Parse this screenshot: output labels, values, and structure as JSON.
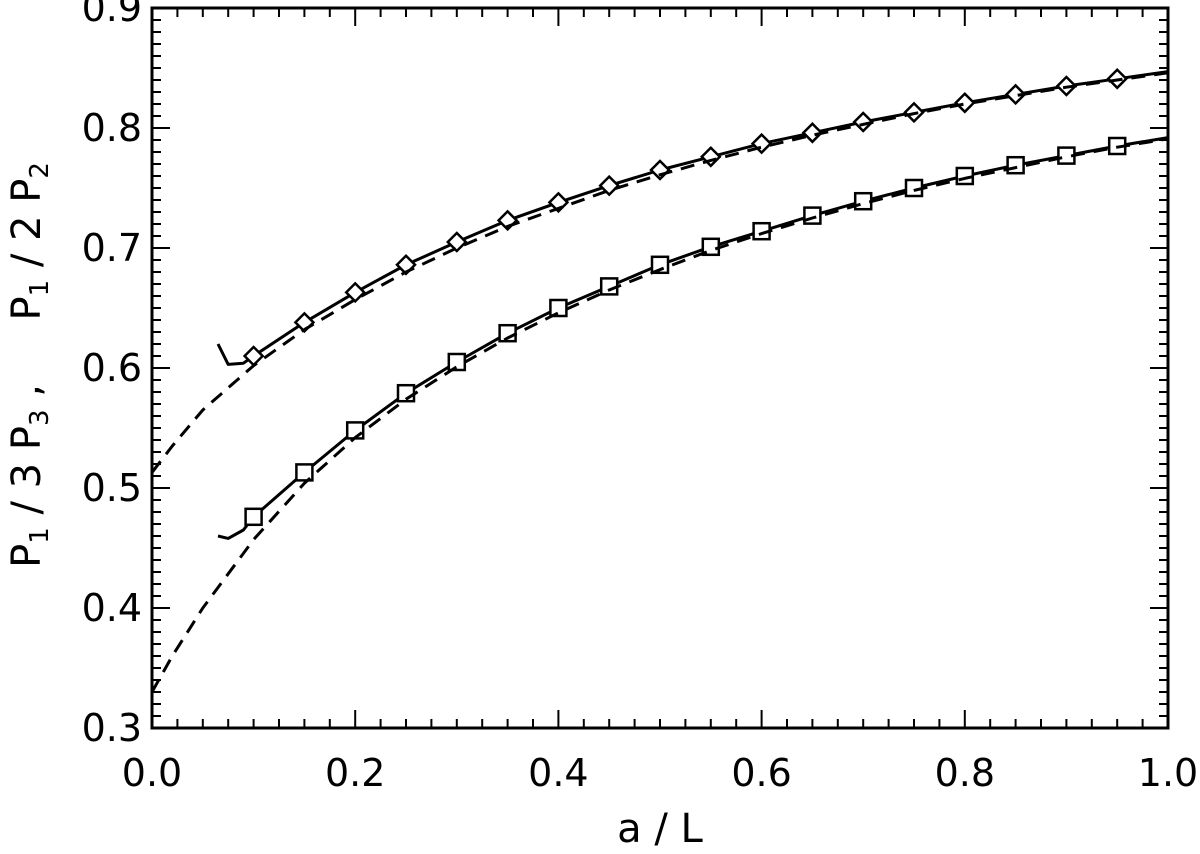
{
  "chart_data": {
    "type": "line",
    "title": "",
    "xlabel": "a / L",
    "ylabel": {
      "p1": "P",
      "sub1": "1",
      "mid1": " / 3 P",
      "sub3": "3",
      "mid2": " ,     P",
      "sub1b": "1",
      "mid3": " / 2 P",
      "sub2": "2"
    },
    "xlim": [
      0.0,
      1.0
    ],
    "ylim": [
      0.3,
      0.9
    ],
    "xticks": [
      "0.0",
      "0.2",
      "0.4",
      "0.6",
      "0.8",
      "1.0"
    ],
    "yticks": [
      "0.3",
      "0.4",
      "0.5",
      "0.6",
      "0.7",
      "0.8",
      "0.9"
    ],
    "grid": false,
    "series": [
      {
        "marker": "diamond",
        "style": "solid",
        "x": [
          0.065,
          0.075,
          0.09,
          0.1,
          0.15,
          0.2,
          0.25,
          0.3,
          0.35,
          0.4,
          0.45,
          0.5,
          0.55,
          0.6,
          0.65,
          0.7,
          0.75,
          0.8,
          0.85,
          0.9,
          0.95,
          1.0
        ],
        "y": [
          0.62,
          0.603,
          0.604,
          0.61,
          0.638,
          0.663,
          0.686,
          0.705,
          0.723,
          0.738,
          0.752,
          0.765,
          0.776,
          0.787,
          0.796,
          0.805,
          0.813,
          0.821,
          0.828,
          0.835,
          0.841,
          0.847
        ],
        "marker_x": [
          0.1,
          0.15,
          0.2,
          0.25,
          0.3,
          0.35,
          0.4,
          0.45,
          0.5,
          0.55,
          0.6,
          0.65,
          0.7,
          0.75,
          0.8,
          0.85,
          0.9,
          0.95
        ]
      },
      {
        "marker": "none",
        "style": "dashed",
        "x": [
          0.0,
          0.02,
          0.05,
          0.1,
          0.15,
          0.2,
          0.25,
          0.3,
          0.35,
          0.4,
          0.45,
          0.5,
          0.55,
          0.6,
          0.65,
          0.7,
          0.75,
          0.8,
          0.85,
          0.9,
          0.95,
          1.0
        ],
        "y": [
          0.513,
          0.535,
          0.565,
          0.602,
          0.632,
          0.657,
          0.68,
          0.7,
          0.718,
          0.733,
          0.748,
          0.761,
          0.773,
          0.784,
          0.794,
          0.803,
          0.812,
          0.82,
          0.827,
          0.834,
          0.84,
          0.846
        ]
      },
      {
        "marker": "square",
        "style": "solid",
        "x": [
          0.065,
          0.075,
          0.09,
          0.1,
          0.15,
          0.2,
          0.25,
          0.3,
          0.35,
          0.4,
          0.45,
          0.5,
          0.55,
          0.6,
          0.65,
          0.7,
          0.75,
          0.8,
          0.85,
          0.9,
          0.95,
          1.0
        ],
        "y": [
          0.46,
          0.458,
          0.465,
          0.476,
          0.513,
          0.548,
          0.579,
          0.605,
          0.629,
          0.65,
          0.668,
          0.686,
          0.701,
          0.714,
          0.727,
          0.739,
          0.75,
          0.76,
          0.769,
          0.777,
          0.785,
          0.792
        ],
        "marker_x": [
          0.1,
          0.15,
          0.2,
          0.25,
          0.3,
          0.35,
          0.4,
          0.45,
          0.5,
          0.55,
          0.6,
          0.65,
          0.7,
          0.75,
          0.8,
          0.85,
          0.9,
          0.95
        ]
      },
      {
        "marker": "none",
        "style": "dashed",
        "x": [
          0.0,
          0.02,
          0.05,
          0.1,
          0.15,
          0.2,
          0.25,
          0.3,
          0.35,
          0.4,
          0.45,
          0.5,
          0.55,
          0.6,
          0.65,
          0.7,
          0.75,
          0.8,
          0.85,
          0.9,
          0.95,
          1.0
        ],
        "y": [
          0.33,
          0.36,
          0.4,
          0.457,
          0.504,
          0.542,
          0.574,
          0.601,
          0.625,
          0.646,
          0.665,
          0.682,
          0.698,
          0.712,
          0.725,
          0.737,
          0.748,
          0.758,
          0.767,
          0.776,
          0.784,
          0.791
        ]
      }
    ]
  }
}
